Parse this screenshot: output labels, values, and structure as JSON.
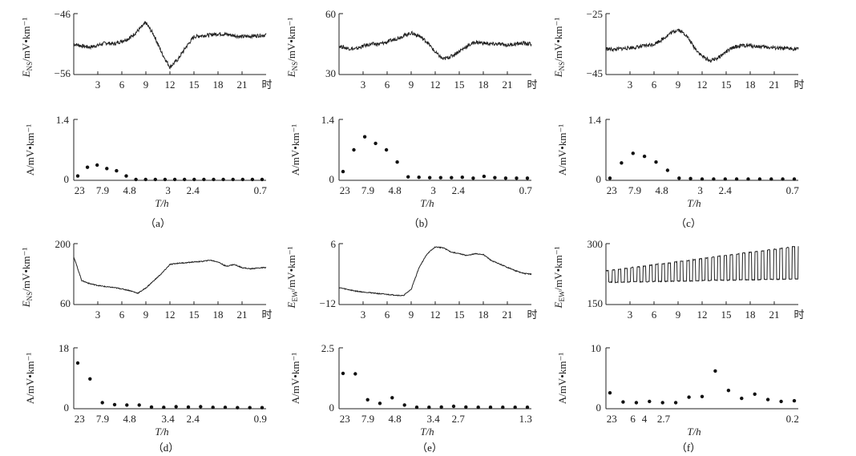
{
  "figure": {
    "panels": [
      {
        "label": "（a）",
        "ts": {
          "ylabel_main": "E",
          "ylabel_sub": "NS",
          "ylabel_unit": "/mV•km⁻¹",
          "ytop": "−46",
          "ybot": "−56",
          "ymin": -56,
          "ymax": -46,
          "xticks": [
            "3",
            "6",
            "9",
            "12",
            "15",
            "18",
            "21"
          ],
          "xend": "时"
        },
        "sp": {
          "ylabel": "A/mV•km⁻¹",
          "ytop": "1.4",
          "ybot": "0",
          "ymax": 1.4,
          "xlabel": "T/h",
          "xticks": [
            "23",
            "7.9",
            "4.8",
            "3",
            "2.4",
            "0.7"
          ]
        }
      },
      {
        "label": "（b）",
        "ts": {
          "ylabel_main": "E",
          "ylabel_sub": "NS",
          "ylabel_unit": "/mV•km⁻¹",
          "ytop": "60",
          "ybot": "30",
          "ymin": 30,
          "ymax": 60,
          "xticks": [
            "3",
            "6",
            "9",
            "12",
            "15",
            "18",
            "21"
          ],
          "xend": "时"
        },
        "sp": {
          "ylabel": "A/mV•km⁻¹",
          "ytop": "1.4",
          "ybot": "0",
          "ymax": 1.4,
          "xlabel": "T/h",
          "xticks": [
            "23",
            "7.9",
            "4.8",
            "3",
            "2.4",
            "0.7"
          ]
        }
      },
      {
        "label": "（c）",
        "ts": {
          "ylabel_main": "E",
          "ylabel_sub": "NS",
          "ylabel_unit": "/mV•km⁻¹",
          "ytop": "−25",
          "ybot": "−45",
          "ymin": -45,
          "ymax": -25,
          "xticks": [
            "3",
            "6",
            "9",
            "12",
            "15",
            "18",
            "21"
          ],
          "xend": "时"
        },
        "sp": {
          "ylabel": "A/mV•km⁻¹",
          "ytop": "1.4",
          "ybot": "0",
          "ymax": 1.4,
          "xlabel": "T/h",
          "xticks": [
            "23",
            "7.9",
            "4.8",
            "3",
            "2.4",
            "0.7"
          ]
        }
      },
      {
        "label": "（d）",
        "ts": {
          "ylabel_main": "E",
          "ylabel_sub": "NS",
          "ylabel_unit": "/mV•km⁻¹",
          "ytop": "200",
          "ybot": "60",
          "ymin": 60,
          "ymax": 200,
          "xticks": [
            "3",
            "6",
            "9",
            "12",
            "15",
            "18",
            "21"
          ],
          "xend": "时"
        },
        "sp": {
          "ylabel": "A/mV•km⁻¹",
          "ytop": "18",
          "ybot": "0",
          "ymax": 18,
          "xlabel": "T/h",
          "xticks": [
            "23",
            "7.9",
            "4.8",
            "3.4",
            "2.4",
            "0.9"
          ]
        }
      },
      {
        "label": "（e）",
        "ts": {
          "ylabel_main": "E",
          "ylabel_sub": "EW",
          "ylabel_unit": "/mV•km⁻¹",
          "ytop": "6",
          "ybot": "−12",
          "ymin": -12,
          "ymax": 6,
          "xticks": [
            "3",
            "6",
            "9",
            "12",
            "15",
            "18",
            "21"
          ],
          "xend": "时"
        },
        "sp": {
          "ylabel": "A/mV•km⁻¹",
          "ytop": "2.5",
          "ybot": "0",
          "ymax": 2.5,
          "xlabel": "T/h",
          "xticks": [
            "23",
            "7.9",
            "4.8",
            "3.4",
            "2.7",
            "1.3"
          ]
        }
      },
      {
        "label": "（f）",
        "ts": {
          "ylabel_main": "E",
          "ylabel_sub": "EW",
          "ylabel_unit": "/mV•km⁻¹",
          "ytop": "300",
          "ybot": "150",
          "ymin": 150,
          "ymax": 300,
          "xticks": [
            "3",
            "6",
            "9",
            "12",
            "15",
            "18",
            "21"
          ],
          "xend": "时"
        },
        "sp": {
          "ylabel": "A/mV•km⁻¹",
          "ytop": "10",
          "ybot": "0",
          "ymax": 10,
          "xlabel": "T/h",
          "xticks": [
            "23",
            "6",
            "4",
            "2.7",
            "0.2"
          ]
        }
      }
    ]
  },
  "chart_data": [
    {
      "type": "line",
      "panel": "a",
      "x": [
        0,
        1,
        2,
        3,
        4,
        5,
        6,
        7,
        8,
        9,
        10,
        11,
        12,
        13,
        14,
        15,
        16,
        17,
        18,
        19,
        20,
        21,
        22,
        23,
        24
      ],
      "y": [
        -51,
        -51.3,
        -51.5,
        -51.2,
        -50.8,
        -51,
        -50.5,
        -50,
        -48.8,
        -47.5,
        -49.5,
        -52.5,
        -54.8,
        -53.5,
        -51.5,
        -49.8,
        -49.6,
        -49.5,
        -49.3,
        -49.4,
        -49.6,
        -49.8,
        -49.7,
        -49.6,
        -49.5
      ]
    },
    {
      "type": "scatter",
      "panel": "a",
      "values": [
        0.1,
        0.3,
        0.35,
        0.27,
        0.22,
        0.1,
        0.02,
        0.02,
        0.02,
        0.02,
        0.02,
        0.02,
        0.02,
        0.02,
        0.02,
        0.02,
        0.02,
        0.02,
        0.02,
        0.02
      ]
    },
    {
      "type": "line",
      "panel": "b",
      "x": [
        0,
        1,
        2,
        3,
        4,
        5,
        6,
        7,
        8,
        9,
        10,
        11,
        12,
        13,
        14,
        15,
        16,
        17,
        18,
        19,
        20,
        21,
        22,
        23,
        24
      ],
      "y": [
        44,
        43,
        42.5,
        44,
        45,
        45,
        46,
        47.5,
        49,
        50.5,
        49,
        46,
        41,
        37.5,
        39,
        41.5,
        44,
        46,
        45.5,
        45,
        45,
        44.5,
        45,
        45.5,
        45
      ]
    },
    {
      "type": "scatter",
      "panel": "b",
      "values": [
        0.2,
        0.7,
        1.0,
        0.85,
        0.7,
        0.42,
        0.08,
        0.07,
        0.06,
        0.06,
        0.06,
        0.07,
        0.05,
        0.09,
        0.06,
        0.05,
        0.05,
        0.05
      ]
    },
    {
      "type": "line",
      "panel": "c",
      "x": [
        0,
        1,
        2,
        3,
        4,
        5,
        6,
        7,
        8,
        9,
        10,
        11,
        12,
        13,
        14,
        15,
        16,
        17,
        18,
        19,
        20,
        21,
        22,
        23,
        24
      ],
      "y": [
        -36.5,
        -36.8,
        -36.5,
        -36.2,
        -36,
        -35.5,
        -35,
        -33.5,
        -31.5,
        -30.2,
        -32,
        -36,
        -39,
        -40.5,
        -39.5,
        -37.5,
        -36,
        -35.5,
        -35.5,
        -35.8,
        -36,
        -36.2,
        -36.5,
        -36.5,
        -36.6
      ]
    },
    {
      "type": "scatter",
      "panel": "c",
      "values": [
        0.05,
        0.4,
        0.62,
        0.55,
        0.42,
        0.23,
        0.05,
        0.04,
        0.03,
        0.03,
        0.03,
        0.03,
        0.03,
        0.03,
        0.03,
        0.03,
        0.03
      ]
    },
    {
      "type": "line",
      "panel": "d",
      "x": [
        0,
        1,
        2,
        3,
        4,
        5,
        6,
        7,
        8,
        9,
        10,
        11,
        12,
        13,
        14,
        15,
        16,
        17,
        18,
        19,
        20,
        21,
        22,
        23,
        24
      ],
      "y": [
        170,
        115,
        108,
        104,
        101,
        99,
        96,
        92,
        86,
        98,
        115,
        132,
        152,
        155,
        156,
        158,
        159,
        162,
        158,
        148,
        152,
        145,
        142,
        144,
        145
      ]
    },
    {
      "type": "scatter",
      "panel": "d",
      "values": [
        13.5,
        8.8,
        1.8,
        1.2,
        1.1,
        1.1,
        0.5,
        0.4,
        0.6,
        0.5,
        0.6,
        0.4,
        0.4,
        0.3,
        0.3,
        0.3
      ]
    },
    {
      "type": "line",
      "panel": "e",
      "x": [
        0,
        1,
        2,
        3,
        4,
        5,
        6,
        7,
        8,
        9,
        10,
        11,
        12,
        13,
        14,
        15,
        16,
        17,
        18,
        19,
        20,
        21,
        22,
        23,
        24
      ],
      "y": [
        -7,
        -7.5,
        -8,
        -8.3,
        -8.5,
        -8.8,
        -9,
        -9.2,
        -9.4,
        -7.5,
        -1,
        3,
        5,
        4.8,
        3.5,
        3,
        2.5,
        3,
        2.8,
        1,
        0,
        -1,
        -2,
        -2.8,
        -3
      ]
    },
    {
      "type": "scatter",
      "panel": "e",
      "values": [
        1.45,
        1.43,
        0.37,
        0.22,
        0.45,
        0.15,
        0.06,
        0.06,
        0.07,
        0.1,
        0.07,
        0.06,
        0.06,
        0.06,
        0.06,
        0.06
      ]
    },
    {
      "type": "line",
      "panel": "f",
      "x": [
        0,
        1,
        2,
        3,
        4,
        5,
        6,
        7,
        8,
        9,
        10,
        11,
        12,
        13,
        14,
        15,
        16,
        17,
        18,
        19,
        20,
        21,
        22,
        23,
        24
      ],
      "y": [
        205,
        205,
        205,
        206,
        206,
        206,
        207,
        207,
        207,
        208,
        208,
        208,
        209,
        209,
        210,
        210,
        210,
        211,
        211,
        211,
        212,
        212,
        212,
        213,
        213
      ],
      "note": "quasi-periodic square pulses of growing amplitude"
    },
    {
      "type": "scatter",
      "panel": "f",
      "values": [
        2.6,
        1.1,
        1,
        1.2,
        1,
        1,
        1.9,
        2,
        6.2,
        3,
        1.7,
        2.4,
        1.5,
        1.2,
        1.3
      ]
    }
  ]
}
